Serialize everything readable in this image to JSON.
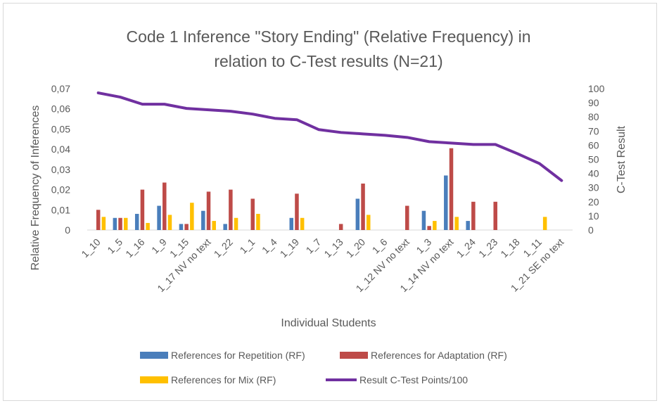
{
  "chart_data": {
    "type": "bar",
    "title_lines": [
      "Code 1 Inference \"Story Ending\" (Relative Frequency) in",
      "relation to C-Test results (N=21)"
    ],
    "xlabel": "Individual Students",
    "ylabel": "Relative Frequency of Inferences",
    "y2label": "C-Test Result",
    "ylim": [
      0,
      0.07
    ],
    "y2lim": [
      0,
      100
    ],
    "yticks": [
      "0",
      "0,01",
      "0,02",
      "0,03",
      "0,04",
      "0,05",
      "0,06",
      "0,07"
    ],
    "y2ticks": [
      "0",
      "10",
      "20",
      "30",
      "40",
      "50",
      "60",
      "70",
      "80",
      "90",
      "100"
    ],
    "categories": [
      "1_10",
      "1_5",
      "1_16",
      "1_9",
      "1_15",
      "1_17 NV no text",
      "1_22",
      "1_1",
      "1_4",
      "1_19",
      "1_7",
      "1_13",
      "1_20",
      "1_6",
      "1_12 NV no text",
      "1_3",
      "1_14 NV no text",
      "1_24",
      "1_23",
      "1_18",
      "1_11",
      "1_21 SE no text"
    ],
    "series": [
      {
        "name": "References for Repetition (RF)",
        "kind": "bar",
        "color": "#4a7ebb",
        "values": [
          0,
          0.006,
          0.008,
          0.012,
          0.003,
          0.0095,
          0.003,
          0,
          0,
          0.006,
          0,
          0,
          0.0155,
          0,
          0,
          0.0095,
          0.027,
          0.0045,
          0,
          0,
          0,
          0
        ]
      },
      {
        "name": "References for Adaptation (RF)",
        "kind": "bar",
        "color": "#be4b48",
        "values": [
          0.01,
          0.006,
          0.02,
          0.0235,
          0.003,
          0.019,
          0.02,
          0.0155,
          0,
          0.018,
          0,
          0.003,
          0.023,
          0,
          0.012,
          0.002,
          0.0405,
          0.014,
          0.014,
          0,
          0,
          0
        ]
      },
      {
        "name": "References for Mix (RF)",
        "kind": "bar",
        "color": "#ffc000",
        "values": [
          0.0065,
          0.006,
          0.0035,
          0.0075,
          0.0135,
          0.0045,
          0.006,
          0.008,
          0,
          0.006,
          0,
          0,
          0.0075,
          0,
          0,
          0.0045,
          0.0065,
          0,
          0,
          0,
          0.0065,
          0
        ]
      },
      {
        "name": "Result C-Test Points/100",
        "kind": "line",
        "axis": "right",
        "color": "#7030a0",
        "values": [
          97,
          94,
          89,
          89,
          86,
          85,
          84,
          82,
          79,
          78,
          71,
          69,
          68,
          67,
          65.5,
          62.5,
          61.5,
          60.5,
          60.5,
          54,
          47,
          35
        ]
      }
    ],
    "legend": {
      "position": "bottom"
    },
    "grid": false
  }
}
